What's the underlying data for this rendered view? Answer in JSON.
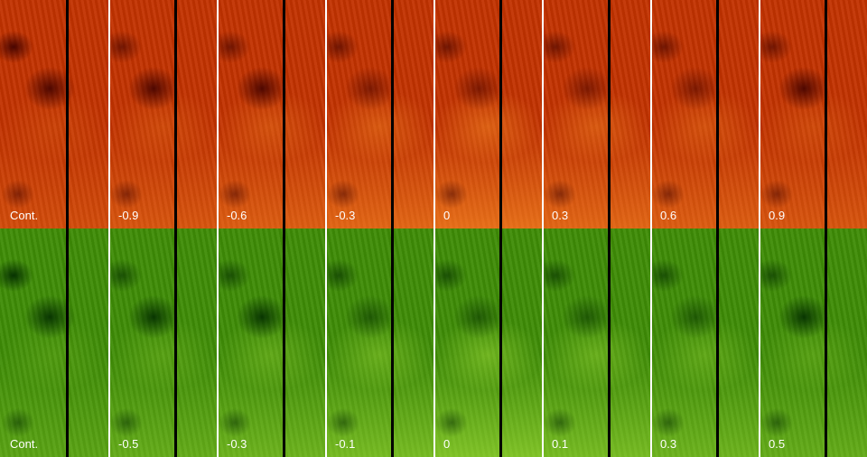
{
  "rows": [
    {
      "panels": [
        "Cont.",
        "-0.9",
        "-0.6",
        "-0.3",
        "0",
        "0.3",
        "0.6",
        "0.9"
      ]
    },
    {
      "panels": [
        "Cont.",
        "-0.5",
        "-0.3",
        "-0.1",
        "0",
        "0.1",
        "0.3",
        "0.5"
      ]
    }
  ]
}
